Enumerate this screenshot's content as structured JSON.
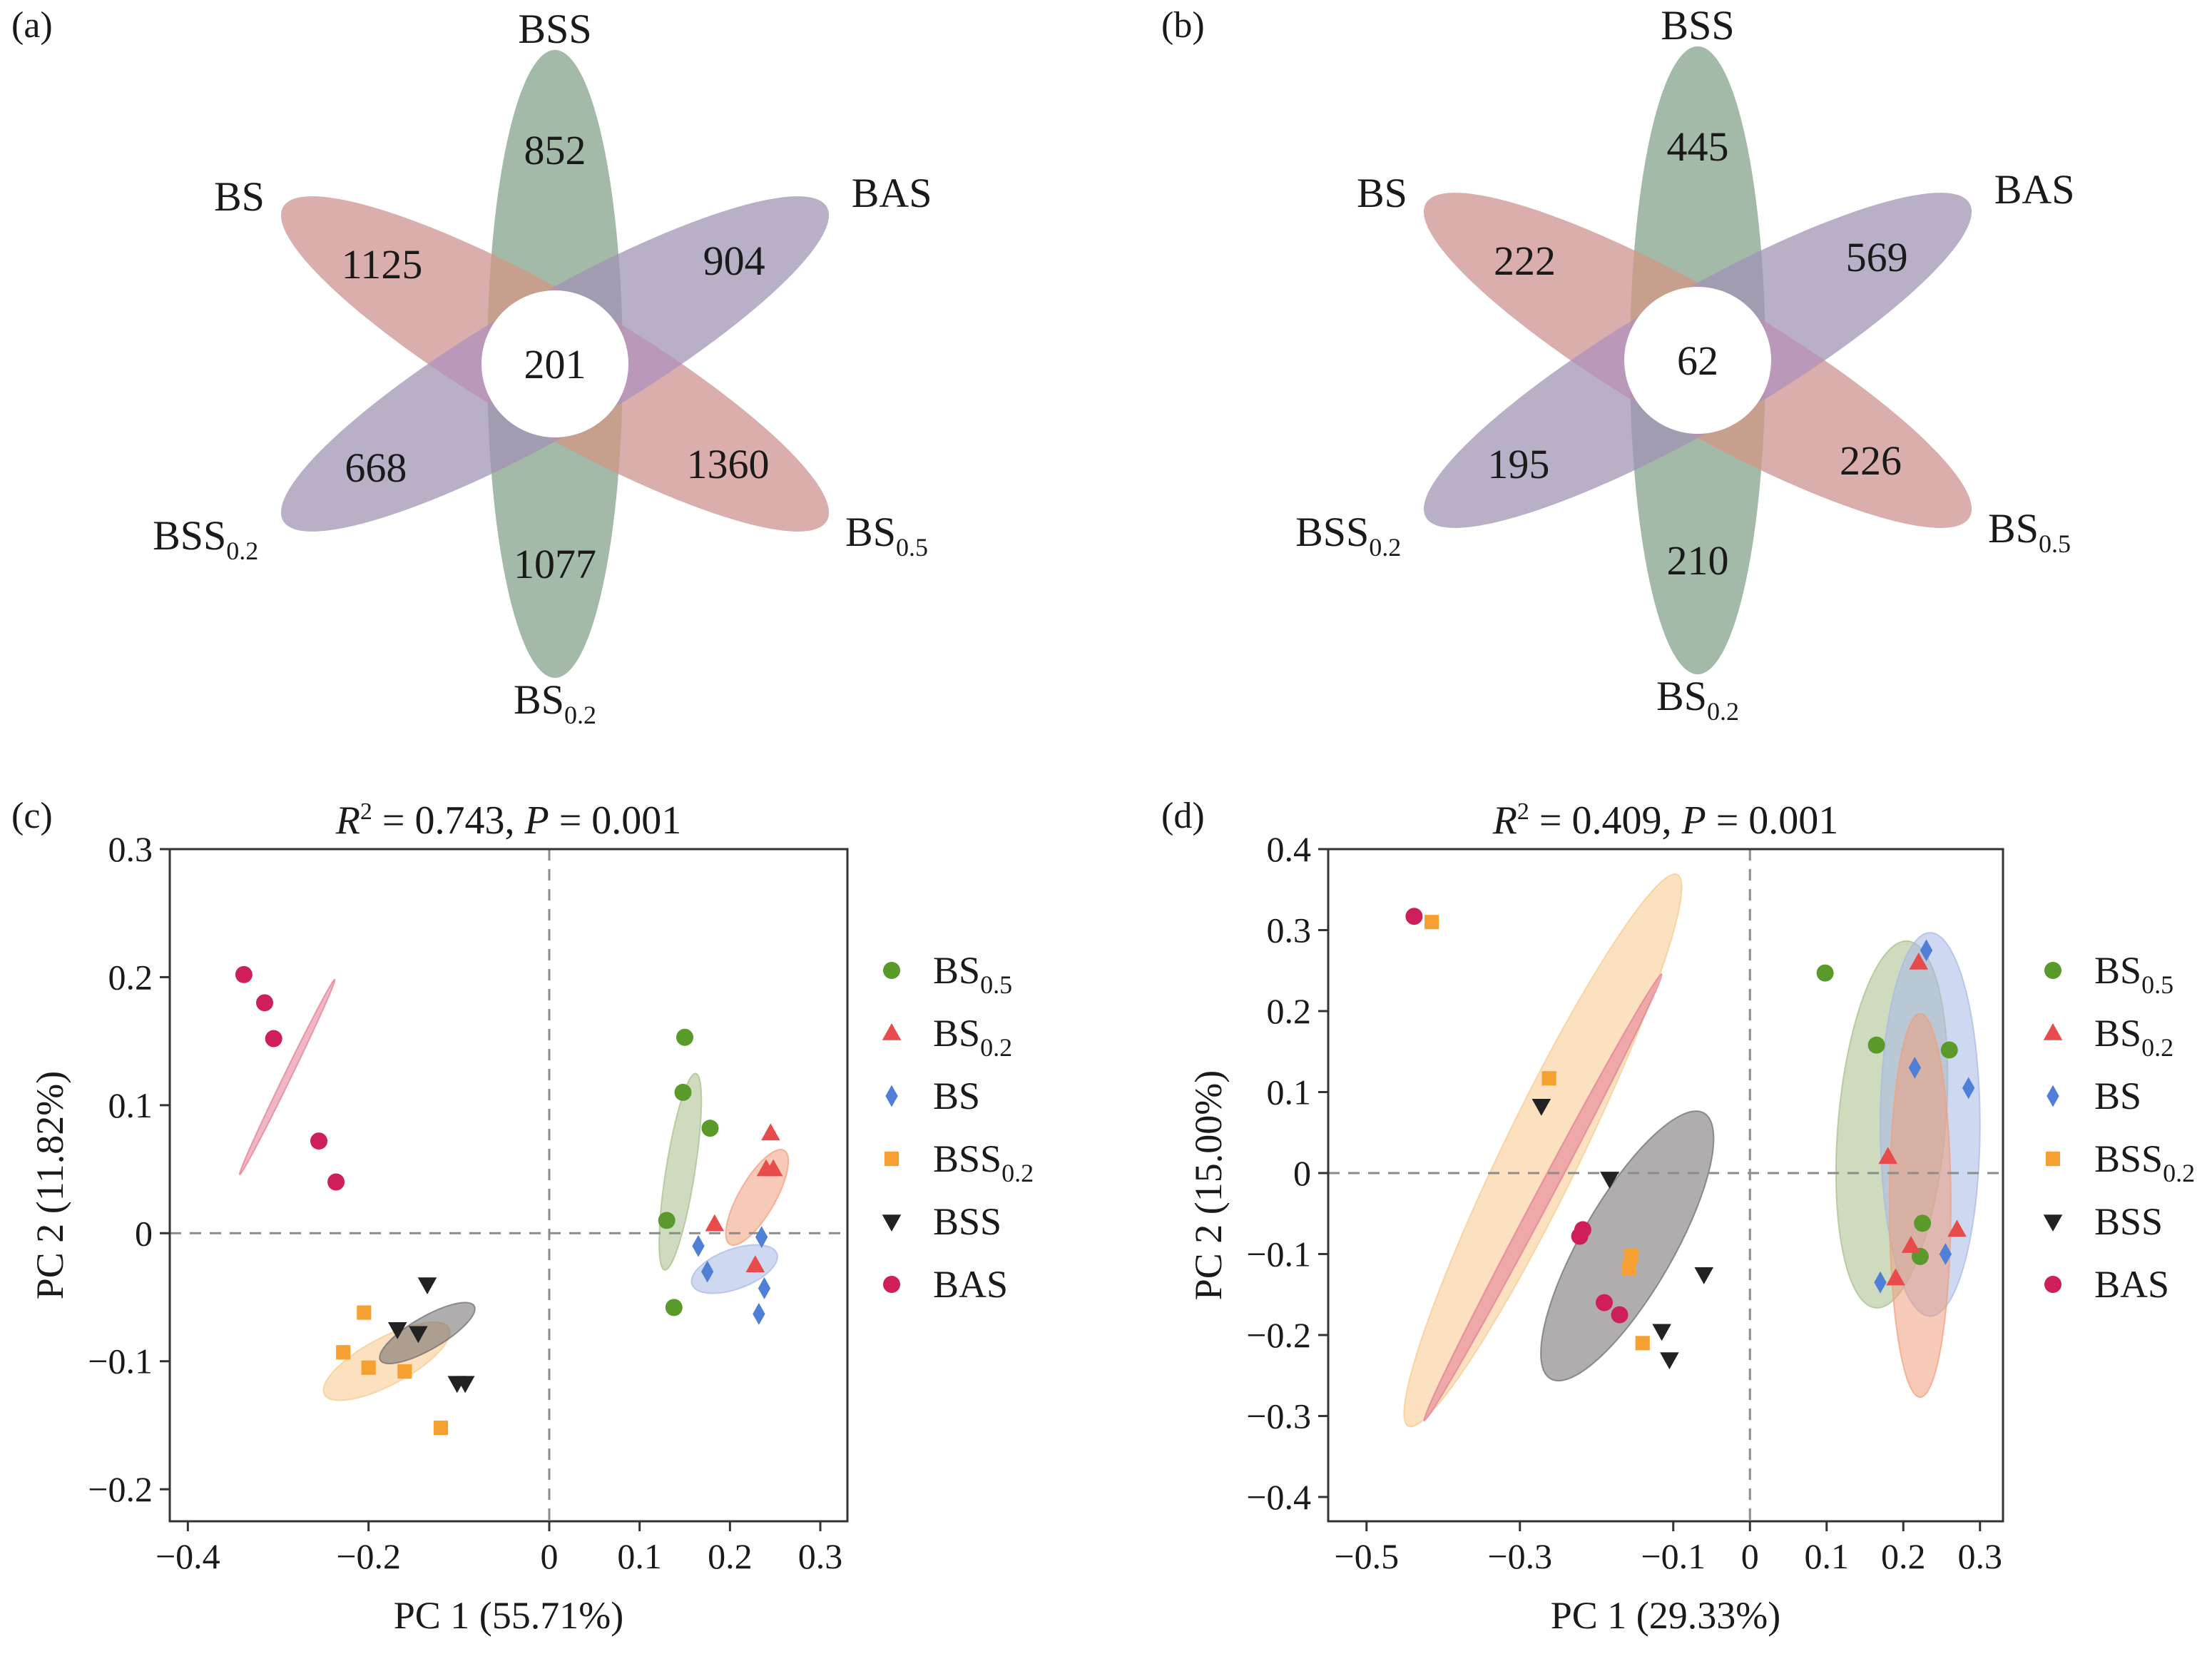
{
  "figure": {
    "panels": [
      "(a)",
      "(b)",
      "(c)",
      "(d)"
    ]
  },
  "venn": [
    {
      "panel": "(a)",
      "center": "201",
      "petals": [
        {
          "name": "BSS",
          "count": "852",
          "color": "#a9d7ec"
        },
        {
          "name": "BAS",
          "count": "904",
          "color": "#a8bd8a"
        },
        {
          "name": "BS0.5",
          "count": "1360",
          "color": "#8f8ed3"
        },
        {
          "name": "BS0.2",
          "count": "1077",
          "color": "#7f9468"
        },
        {
          "name": "BS",
          "count": "1125",
          "color": "#ef9e7c"
        },
        {
          "name": "BSS0.2",
          "count": "668",
          "color": "#a88cd0"
        }
      ]
    },
    {
      "panel": "(b)",
      "center": "62",
      "petals": [
        {
          "name": "BSS",
          "count": "445",
          "color": "#a9d7ec"
        },
        {
          "name": "BAS",
          "count": "569",
          "color": "#a8bd8a"
        },
        {
          "name": "BS0.5",
          "count": "226",
          "color": "#8f8ed3"
        },
        {
          "name": "BS0.2",
          "count": "210",
          "color": "#7f9468"
        },
        {
          "name": "BS",
          "count": "222",
          "color": "#ef9e7c"
        },
        {
          "name": "BSS0.2",
          "count": "195",
          "color": "#a88cd0"
        }
      ]
    }
  ],
  "chart_data": [
    {
      "type": "scatter",
      "panel": "(c)",
      "stat_label": {
        "r2": "0.743",
        "p": "0.001"
      },
      "xlabel": "PC 1 (55.71%)",
      "ylabel": "PC 2 (11.82%)",
      "xlim": [
        -0.42,
        0.33
      ],
      "ylim": [
        -0.225,
        0.3
      ],
      "xticks": [
        -0.4,
        -0.2,
        0,
        0.1,
        0.2,
        0.3
      ],
      "xtick_labels": [
        "−0.4",
        "−0.2",
        "0",
        "0.1",
        "0.2",
        "0.3"
      ],
      "yticks": [
        -0.2,
        -0.1,
        0,
        0.1,
        0.2,
        0.3
      ],
      "ytick_labels": [
        "−0.2",
        "−0.1",
        "0",
        "0.1",
        "0.2",
        "0.3"
      ],
      "legend_position": "right",
      "series": [
        {
          "name": "BS0.5",
          "marker": "circle",
          "color": "#5a9a2b",
          "points": [
            [
              0.15,
              0.153
            ],
            [
              0.148,
              0.11
            ],
            [
              0.178,
              0.082
            ],
            [
              0.13,
              0.01
            ],
            [
              0.138,
              -0.058
            ]
          ]
        },
        {
          "name": "BS0.2",
          "marker": "triangle",
          "color": "#e84b4b",
          "points": [
            [
              0.245,
              0.078
            ],
            [
              0.24,
              0.05
            ],
            [
              0.248,
              0.05
            ],
            [
              0.183,
              0.007
            ],
            [
              0.228,
              -0.025
            ]
          ]
        },
        {
          "name": "BS",
          "marker": "diamond",
          "color": "#4f7fd6",
          "points": [
            [
              0.165,
              -0.01
            ],
            [
              0.175,
              -0.03
            ],
            [
              0.235,
              -0.003
            ],
            [
              0.238,
              -0.043
            ],
            [
              0.232,
              -0.063
            ]
          ]
        },
        {
          "name": "BSS0.2",
          "marker": "square",
          "color": "#f5a030",
          "points": [
            [
              -0.205,
              -0.062
            ],
            [
              -0.228,
              -0.093
            ],
            [
              -0.2,
              -0.105
            ],
            [
              -0.16,
              -0.108
            ],
            [
              -0.12,
              -0.152
            ]
          ]
        },
        {
          "name": "BSS",
          "marker": "tri-down",
          "color": "#222222",
          "points": [
            [
              -0.135,
              -0.04
            ],
            [
              -0.168,
              -0.075
            ],
            [
              -0.145,
              -0.078
            ],
            [
              -0.102,
              -0.117
            ],
            [
              -0.093,
              -0.117
            ]
          ]
        },
        {
          "name": "BAS",
          "marker": "circle",
          "color": "#cf1f5a",
          "points": [
            [
              -0.338,
              0.202
            ],
            [
              -0.315,
              0.18
            ],
            [
              -0.305,
              0.152
            ],
            [
              -0.255,
              0.072
            ],
            [
              -0.236,
              0.04
            ]
          ]
        }
      ],
      "ellipses": [
        {
          "series": "BS0.5",
          "color": "#a8bd8a",
          "cx": 0.145,
          "cy": 0.048,
          "rx": 0.11,
          "ry": 0.016,
          "angle": -81
        },
        {
          "series": "BS0.2",
          "color": "#ef9e7c",
          "cx": 0.23,
          "cy": 0.028,
          "rx": 0.06,
          "ry": 0.02,
          "angle": -60
        },
        {
          "series": "BS",
          "color": "#a7b8e6",
          "cx": 0.205,
          "cy": -0.028,
          "rx": 0.05,
          "ry": 0.022,
          "angle": -20
        },
        {
          "series": "BSS0.2",
          "color": "#f7c98b",
          "cx": -0.18,
          "cy": -0.1,
          "rx": 0.078,
          "ry": 0.026,
          "angle": -28
        },
        {
          "series": "BSS",
          "color": "#6e6a6a",
          "cx": -0.135,
          "cy": -0.078,
          "rx": 0.06,
          "ry": 0.018,
          "angle": -30
        },
        {
          "series": "BAS",
          "color": "#e37a93",
          "cx": -0.29,
          "cy": 0.122,
          "rx": 0.12,
          "ry": 0.004,
          "angle": -64
        }
      ]
    },
    {
      "type": "scatter",
      "panel": "(d)",
      "stat_label": {
        "r2": "0.409",
        "p": "0.001"
      },
      "xlabel": "PC 1 (29.33%)",
      "ylabel": "PC 2 (15.00%)",
      "xlim": [
        -0.55,
        0.33
      ],
      "ylim": [
        -0.43,
        0.4
      ],
      "xticks": [
        -0.5,
        -0.3,
        -0.1,
        0,
        0.1,
        0.2,
        0.3
      ],
      "xtick_labels": [
        "−0.5",
        "−0.3",
        "−0.1",
        "0",
        "0.1",
        "0.2",
        "0.3"
      ],
      "yticks": [
        -0.4,
        -0.3,
        -0.2,
        -0.1,
        0,
        0.1,
        0.2,
        0.3,
        0.4
      ],
      "ytick_labels": [
        "−0.4",
        "−0.3",
        "−0.2",
        "−0.1",
        "0",
        "0.1",
        "0.2",
        "0.3",
        "0.4"
      ],
      "legend_position": "right",
      "series": [
        {
          "name": "BS0.5",
          "marker": "circle",
          "color": "#5a9a2b",
          "points": [
            [
              0.098,
              0.247
            ],
            [
              0.165,
              0.158
            ],
            [
              0.26,
              0.152
            ],
            [
              0.225,
              -0.062
            ],
            [
              0.222,
              -0.103
            ]
          ]
        },
        {
          "name": "BS0.2",
          "marker": "triangle",
          "color": "#e84b4b",
          "points": [
            [
              0.22,
              0.26
            ],
            [
              0.18,
              0.02
            ],
            [
              0.27,
              -0.07
            ],
            [
              0.21,
              -0.09
            ],
            [
              0.19,
              -0.13
            ]
          ]
        },
        {
          "name": "BS",
          "marker": "diamond",
          "color": "#4f7fd6",
          "points": [
            [
              0.23,
              0.275
            ],
            [
              0.285,
              0.105
            ],
            [
              0.215,
              0.13
            ],
            [
              0.17,
              -0.135
            ],
            [
              0.255,
              -0.1
            ]
          ]
        },
        {
          "name": "BSS0.2",
          "marker": "square",
          "color": "#f5a030",
          "points": [
            [
              -0.415,
              0.31
            ],
            [
              -0.262,
              0.117
            ],
            [
              -0.155,
              -0.102
            ],
            [
              -0.158,
              -0.118
            ],
            [
              -0.14,
              -0.21
            ]
          ]
        },
        {
          "name": "BSS",
          "marker": "tri-down",
          "color": "#222222",
          "points": [
            [
              -0.272,
              0.083
            ],
            [
              -0.183,
              -0.007
            ],
            [
              -0.06,
              -0.125
            ],
            [
              -0.115,
              -0.195
            ],
            [
              -0.105,
              -0.23
            ]
          ]
        },
        {
          "name": "BAS",
          "marker": "circle",
          "color": "#cf1f5a",
          "points": [
            [
              -0.438,
              0.317
            ],
            [
              -0.218,
              -0.07
            ],
            [
              -0.222,
              -0.078
            ],
            [
              -0.19,
              -0.16
            ],
            [
              -0.17,
              -0.175
            ]
          ]
        }
      ],
      "ellipses": [
        {
          "series": "BS0.5",
          "color": "#a8bd8a",
          "cx": 0.185,
          "cy": 0.06,
          "rx": 0.24,
          "ry": 0.07,
          "angle": -85
        },
        {
          "series": "BS",
          "color": "#a7b8e6",
          "cx": 0.235,
          "cy": 0.06,
          "rx": 0.25,
          "ry": 0.065,
          "angle": -90
        },
        {
          "series": "BS0.2",
          "color": "#ef9e7c",
          "cx": 0.222,
          "cy": -0.04,
          "rx": 0.25,
          "ry": 0.04,
          "angle": -90
        },
        {
          "series": "BSS0.2",
          "color": "#f7c98b",
          "cx": -0.27,
          "cy": 0.028,
          "rx": 0.4,
          "ry": 0.05,
          "angle": -64
        },
        {
          "series": "BSS",
          "color": "#6e6a6a",
          "cx": -0.16,
          "cy": -0.09,
          "rx": 0.2,
          "ry": 0.06,
          "angle": -60
        },
        {
          "series": "BAS",
          "color": "#e37a93",
          "cx": -0.27,
          "cy": -0.03,
          "rx": 0.33,
          "ry": 0.01,
          "angle": -62
        }
      ]
    }
  ],
  "legend": [
    {
      "base": "BS",
      "sub": "0.5"
    },
    {
      "base": "BS",
      "sub": "0.2"
    },
    {
      "base": "BS",
      "sub": ""
    },
    {
      "base": "BSS",
      "sub": "0.2"
    },
    {
      "base": "BSS",
      "sub": ""
    },
    {
      "base": "BAS",
      "sub": ""
    }
  ]
}
